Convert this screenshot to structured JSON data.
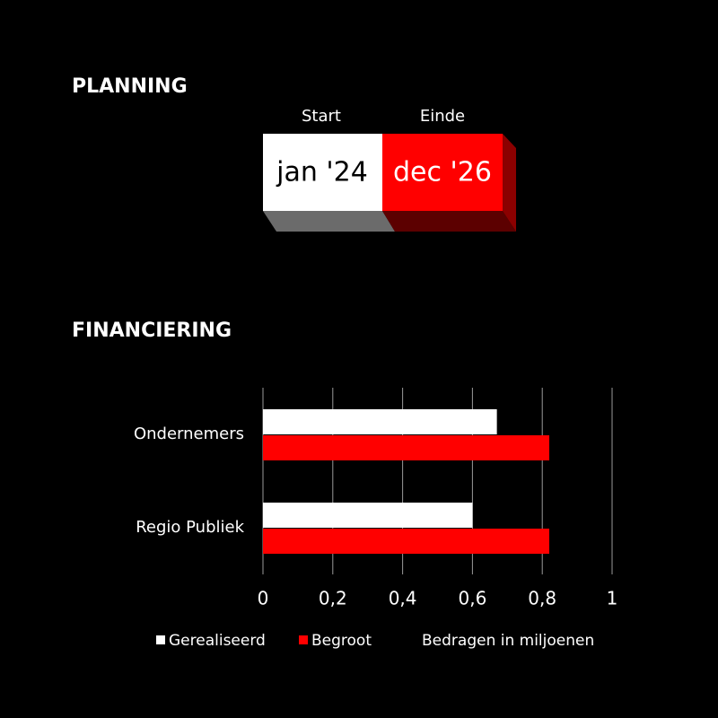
{
  "planning": {
    "title": "PLANNING",
    "start_label": "Start",
    "end_label": "Einde",
    "start": "jan '24",
    "end": "dec '26"
  },
  "chart_data": {
    "type": "bar",
    "orientation": "horizontal",
    "title": "FINANCIERING",
    "categories": [
      "Ondernemers",
      "Regio Publiek"
    ],
    "series": [
      {
        "name": "Gerealiseerd",
        "color": "#ffffff",
        "values": [
          0.67,
          0.6
        ]
      },
      {
        "name": "Begroot",
        "color": "#ff0000",
        "values": [
          0.82,
          0.82
        ]
      }
    ],
    "xlim": [
      0,
      1
    ],
    "xticks": [
      0,
      {
        "value": 0.2,
        "label": "0,2"
      },
      {
        "value": 0.4,
        "label": "0,4"
      },
      {
        "value": 0.6,
        "label": "0,6"
      },
      {
        "value": 0.8,
        "label": "0,8"
      },
      1
    ],
    "grid": true,
    "legend": "bottom",
    "note": "Bedragen in miljoenen"
  }
}
